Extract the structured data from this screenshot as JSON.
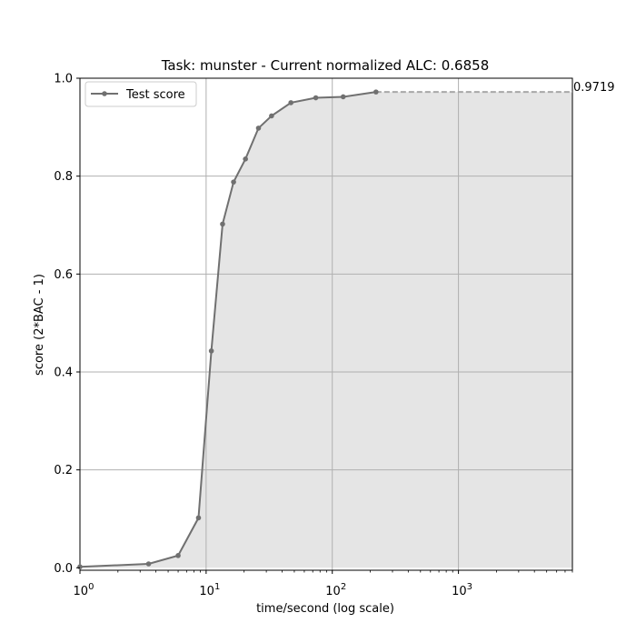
{
  "chart_data": {
    "type": "line",
    "title": "Task: munster - Current normalized ALC: 0.6858",
    "xlabel": "time/second (log scale)",
    "ylabel": "score (2*BAC - 1)",
    "xscale": "log",
    "xlim": [
      1,
      8000
    ],
    "ylim": [
      -0.005,
      1.0
    ],
    "grid": true,
    "legend": {
      "position": "top-left",
      "entries": [
        "Test score"
      ]
    },
    "x_ticks": [
      {
        "value": 1,
        "base": "10",
        "exp": "0"
      },
      {
        "value": 10,
        "base": "10",
        "exp": "1"
      },
      {
        "value": 100,
        "base": "10",
        "exp": "2"
      },
      {
        "value": 1000,
        "base": "10",
        "exp": "3"
      }
    ],
    "y_ticks": [
      {
        "value": 0.0,
        "label": "0.0"
      },
      {
        "value": 0.2,
        "label": "0.2"
      },
      {
        "value": 0.4,
        "label": "0.4"
      },
      {
        "value": 0.6,
        "label": "0.6"
      },
      {
        "value": 0.8,
        "label": "0.8"
      },
      {
        "value": 1.0,
        "label": "1.0"
      }
    ],
    "series": [
      {
        "name": "Test score",
        "color": "#707070",
        "x": [
          1.0,
          3.5,
          6.0,
          8.7,
          11.0,
          13.5,
          16.5,
          20.5,
          26.0,
          33.0,
          47.0,
          74.0,
          122.0,
          222.0
        ],
        "y": [
          0.002,
          0.008,
          0.025,
          0.102,
          0.443,
          0.702,
          0.788,
          0.835,
          0.898,
          0.923,
          0.95,
          0.96,
          0.962,
          0.9719
        ]
      }
    ],
    "extension": {
      "from_x": 222.0,
      "to_x": 8000,
      "y": 0.9719,
      "style": "dashed",
      "color": "#a8a8a8"
    },
    "fill_color": "#e5e5e5",
    "annotation": "0.9719"
  }
}
